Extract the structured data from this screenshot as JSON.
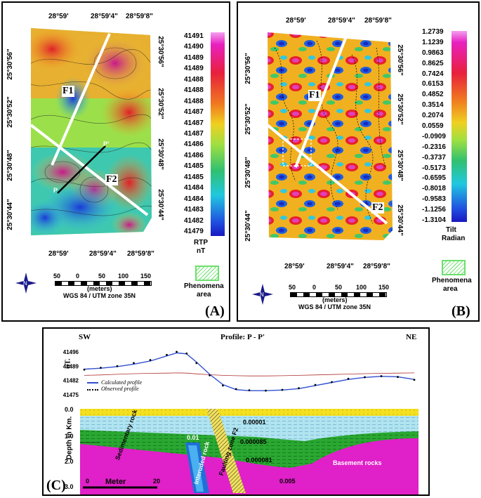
{
  "panelA": {
    "tag": "(A)",
    "top_ticks": [
      "28°59'",
      "28°59'4\"",
      "28°59'8\""
    ],
    "bottom_ticks": [
      "28°59'",
      "28°59'4\"",
      "28°59'8\""
    ],
    "left_ticks": [
      "25°30'56\"",
      "25°30'52\"",
      "25°30'48\"",
      "25°30'44\""
    ],
    "right_ticks": [
      "25°30'56\"",
      "25°30'52\"",
      "25°30'48\"",
      "25°30'44\""
    ],
    "colorbar_values": [
      "41491",
      "41490",
      "41489",
      "41489",
      "41488",
      "41488",
      "41488",
      "41487",
      "41487",
      "41487",
      "41486",
      "41486",
      "41485",
      "41485",
      "41484",
      "41484",
      "41483",
      "41482",
      "41479"
    ],
    "colorbar_title1": "RTP",
    "colorbar_title2": "nT",
    "faults": [
      "F1",
      "F2"
    ],
    "profile_end1": "P",
    "profile_end2": "P'",
    "scale_ticks": [
      "50",
      "0",
      "50",
      "100",
      "150"
    ],
    "scale_units": "(meters)",
    "projection": "WGS 84 / UTM zone 35N",
    "legend1": "Phenomena",
    "legend2": "area"
  },
  "panelB": {
    "tag": "(B)",
    "top_ticks": [
      "28°59'",
      "28°59'4\"",
      "28°59'8\""
    ],
    "bottom_ticks": [
      "28°59'",
      "28°59'4\"",
      "28°59'8\""
    ],
    "left_ticks": [
      "25°30'56\"",
      "25°30'52\"",
      "25°30'48\"",
      "25°30'44\""
    ],
    "right_ticks": [
      "25°30'56\"",
      "25°30'52\"",
      "25°30'48\"",
      "25°30'44\""
    ],
    "colorbar_values": [
      "1.2739",
      "1.1239",
      "0.9863",
      "0.8625",
      "0.7424",
      "0.6153",
      "0.4852",
      "0.3514",
      "0.2074",
      "0.0559",
      "-0.0909",
      "-0.2316",
      "-0.3737",
      "-0.5173",
      "-0.6595",
      "-0.8018",
      "-0.9583",
      "-1.1256",
      "-1.3104"
    ],
    "colorbar_title1": "Tilt",
    "colorbar_title2": "Radian",
    "faults": [
      "F1",
      "F2"
    ],
    "scale_ticks": [
      "50",
      "0",
      "50",
      "100",
      "150"
    ],
    "scale_units": "(meters)",
    "projection": "WGS 84 / UTM zone 35N",
    "legend1": "Phenomena",
    "legend2": "area"
  },
  "panelC": {
    "tag": "(C)",
    "title": "Profile: P - P'",
    "sw": "SW",
    "ne": "NE",
    "nt_label": "nT.",
    "depth_label": "Depth in Km.",
    "depth_ticks": [
      "0.0",
      "1.0",
      "2.0",
      "3.0"
    ],
    "legend_calc": "Calculated profile",
    "legend_obs": "Observed profile",
    "layer_sed": "Sedimentary rock",
    "layer_intr": "Interuded rock",
    "layer_fault": "Faulting zone F2",
    "layer_base": "Basement rocks",
    "val_a": "0.00001",
    "val_b": "0.000085",
    "val_c": "0.000081",
    "val_d": "0.01",
    "val_e": "0.005",
    "meter_label": "Meter",
    "meter_0": "0",
    "meter_20": "20"
  },
  "chart_data": {
    "type": "line",
    "title": "Profile: P - P'",
    "ylabel": "nT.",
    "yticks": [
      41496,
      41489,
      41482,
      41475
    ],
    "ylim": [
      41475,
      41497
    ],
    "x": [
      0,
      0.05,
      0.1,
      0.15,
      0.2,
      0.25,
      0.28,
      0.31,
      0.34,
      0.38,
      0.42,
      0.46,
      0.5,
      0.55,
      0.6,
      0.65,
      0.7,
      0.75,
      0.8,
      0.85,
      0.9,
      0.95,
      1.0
    ],
    "series": [
      {
        "name": "Calculated profile",
        "values": [
          41487.5,
          41488,
          41488.8,
          41490,
          41491.5,
          41494,
          41495.5,
          41495,
          41491,
          41485,
          41480,
          41477.5,
          41477,
          41477,
          41477.3,
          41478,
          41479.5,
          41481,
          41482.5,
          41483.5,
          41484,
          41483.8,
          41482.5
        ]
      },
      {
        "name": "Observed profile",
        "values": [
          41487.3,
          41488.2,
          41489,
          41490.5,
          41492,
          41494.5,
          41496,
          41495.2,
          41490.5,
          41484.5,
          41479.5,
          41477.8,
          41477.2,
          41477,
          41477.4,
          41478.2,
          41479.8,
          41481.2,
          41482.8,
          41483.6,
          41484.1,
          41483.7,
          41482.3
        ]
      }
    ],
    "model_line": [
      41484.5,
      41484.7,
      41485,
      41485.3,
      41485.5,
      41485.6,
      41485.7,
      41485.6,
      41485.2,
      41484.8,
      41484.5,
      41484.3,
      41484.2,
      41484.2,
      41484.3,
      41484.5,
      41484.7,
      41484.9,
      41485.1,
      41485.3,
      41485.5,
      41485.6,
      41485.7
    ]
  }
}
